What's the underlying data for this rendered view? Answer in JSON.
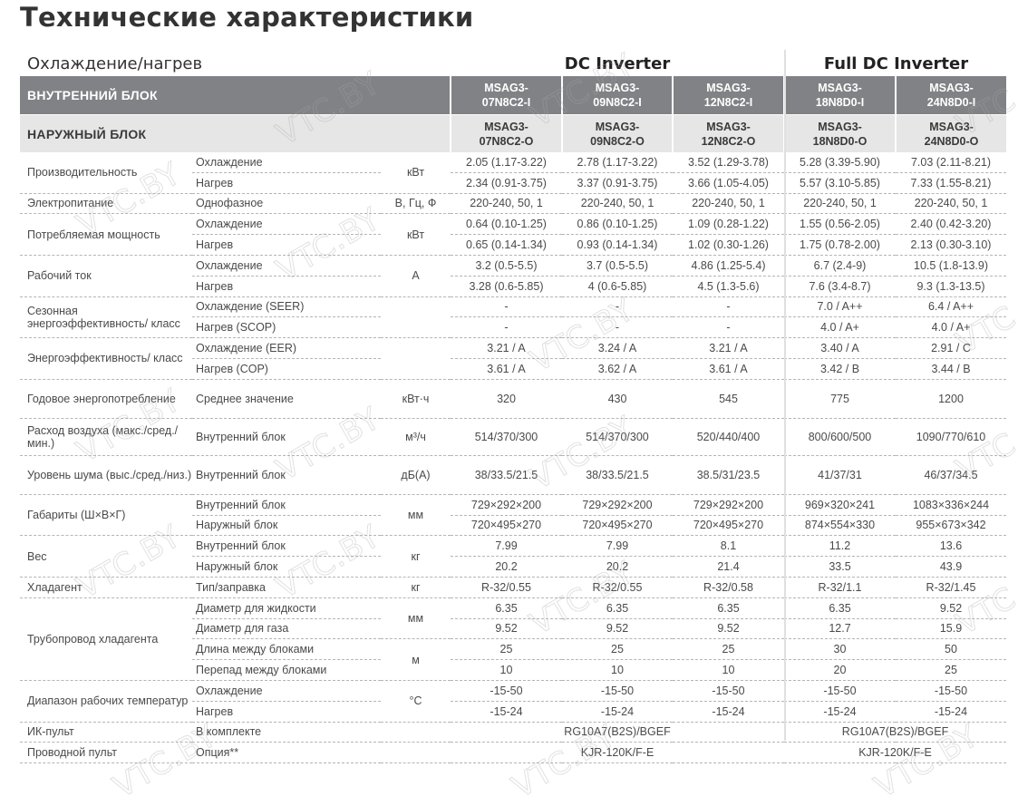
{
  "title": "Технические характеристики",
  "subtitle": "Охлаждение/нагрев",
  "series": [
    "DC Inverter",
    "Full DC Inverter"
  ],
  "watermark": "VTC.BY",
  "header": {
    "indoor_label": "ВНУТРЕННИЙ БЛОК",
    "outdoor_label": "НАРУЖНЫЙ БЛОК",
    "indoor_models": [
      [
        "MSAG3-",
        "07N8C2-I"
      ],
      [
        "MSAG3-",
        "09N8C2-I"
      ],
      [
        "MSAG3-",
        "12N8C2-I"
      ],
      [
        "MSAG3-",
        "18N8D0-I"
      ],
      [
        "MSAG3-",
        "24N8D0-I"
      ]
    ],
    "outdoor_models": [
      [
        "MSAG3-",
        "07N8C2-O"
      ],
      [
        "MSAG3-",
        "09N8C2-O"
      ],
      [
        "MSAG3-",
        "12N8C2-O"
      ],
      [
        "MSAG3-",
        "18N8D0-O"
      ],
      [
        "MSAG3-",
        "24N8D0-O"
      ]
    ]
  },
  "groups": [
    {
      "label": "Производительность",
      "unit": "кВт",
      "rows": [
        {
          "sub": "Охлаждение",
          "values": [
            "2.05 (1.17-3.22)",
            "2.78 (1.17-3.22)",
            "3.52 (1.29-3.78)",
            "5.28 (3.39-5.90)",
            "7.03 (2.11-8.21)"
          ]
        },
        {
          "sub": "Нагрев",
          "values": [
            "2.34 (0.91-3.75)",
            "3.37 (0.91-3.75)",
            "3.66 (1.05-4.05)",
            "5.57 (3.10-5.85)",
            "7.33 (1.55-8.21)"
          ]
        }
      ]
    },
    {
      "label": "Электропитание",
      "unit": "В, Гц, Ф",
      "rows": [
        {
          "sub": "Однофазное",
          "values": [
            "220-240, 50, 1",
            "220-240, 50, 1",
            "220-240, 50, 1",
            "220-240, 50, 1",
            "220-240, 50, 1"
          ]
        }
      ]
    },
    {
      "label": "Потребляемая мощность",
      "unit": "кВт",
      "rows": [
        {
          "sub": "Охлаждение",
          "values": [
            "0.64 (0.10-1.25)",
            "0.86 (0.10-1.25)",
            "1.09 (0.28-1.22)",
            "1.55 (0.56-2.05)",
            "2.40 (0.42-3.20)"
          ]
        },
        {
          "sub": "Нагрев",
          "values": [
            "0.65 (0.14-1.34)",
            "0.93 (0.14-1.34)",
            "1.02 (0.30-1.26)",
            "1.75 (0.78-2.00)",
            "2.13 (0.30-3.10)"
          ]
        }
      ]
    },
    {
      "label": "Рабочий ток",
      "unit": "А",
      "rows": [
        {
          "sub": "Охлаждение",
          "values": [
            "3.2 (0.5-5.5)",
            "3.7 (0.5-5.5)",
            "4.86 (1.25-5.4)",
            "6.7 (2.4-9)",
            "10.5 (1.8-13.9)"
          ]
        },
        {
          "sub": "Нагрев",
          "values": [
            "3.28 (0.6-5.85)",
            "4 (0.6-5.85)",
            "4.5 (1.3-5.6)",
            "7.6 (3.4-8.7)",
            "9.3 (1.3-13.5)"
          ]
        }
      ]
    },
    {
      "label": "Сезонная энергоэффективность/ класс",
      "unit": "",
      "rows": [
        {
          "sub": "Охлаждение (SEER)",
          "values": [
            "-",
            "-",
            "-",
            "7.0 / A++",
            "6.4 / A++"
          ]
        },
        {
          "sub": "Нагрев (SCOP)",
          "values": [
            "-",
            "-",
            "-",
            "4.0 / A+",
            "4.0 / A+"
          ]
        }
      ]
    },
    {
      "label": "Энергоэффективность/ класс",
      "unit": "",
      "rows": [
        {
          "sub": "Охлаждение (EER)",
          "values": [
            "3.21 / A",
            "3.24 / A",
            "3.21 / A",
            "3.40 / A",
            "2.91 / C"
          ]
        },
        {
          "sub": "Нагрев (COP)",
          "values": [
            "3.61 / A",
            "3.62 / A",
            "3.61 / A",
            "3.42 / B",
            "3.44 / B"
          ]
        }
      ]
    },
    {
      "label": "Годовое энергопотребление",
      "unit": "кВт·ч",
      "tall": 42,
      "rows": [
        {
          "sub": "Среднее значение",
          "values": [
            "320",
            "430",
            "545",
            "775",
            "1200"
          ]
        }
      ]
    },
    {
      "label": "Расход воздуха (макс./сред./мин.)",
      "unit": "м³/ч",
      "tall": 40,
      "rows": [
        {
          "sub": "Внутренний блок",
          "values": [
            "514/370/300",
            "514/370/300",
            "520/440/400",
            "800/600/500",
            "1090/770/610"
          ]
        }
      ]
    },
    {
      "label": "Уровень шума (выс./сред./низ.)",
      "unit": "дБ(А)",
      "tall": 42,
      "rows": [
        {
          "sub": "Внутренний блок",
          "values": [
            "38/33.5/21.5",
            "38/33.5/21.5",
            "38.5/31/23.5",
            "41/37/31",
            "46/37/34.5"
          ]
        }
      ]
    },
    {
      "label": "Габариты (Ш×В×Г)",
      "unit": "мм",
      "rows": [
        {
          "sub": "Внутренний блок",
          "values": [
            "729×292×200",
            "729×292×200",
            "729×292×200",
            "969×320×241",
            "1083×336×244"
          ]
        },
        {
          "sub": "Наружный блок",
          "values": [
            "720×495×270",
            "720×495×270",
            "720×495×270",
            "874×554×330",
            "955×673×342"
          ]
        }
      ]
    },
    {
      "label": "Вес",
      "unit": "кг",
      "rows": [
        {
          "sub": "Внутренний блок",
          "values": [
            "7.99",
            "7.99",
            "8.1",
            "11.2",
            "13.6"
          ]
        },
        {
          "sub": "Наружный блок",
          "values": [
            "20.2",
            "20.2",
            "21.4",
            "33.5",
            "43.9"
          ]
        }
      ]
    },
    {
      "label": "Хладагент",
      "unit": "кг",
      "rows": [
        {
          "sub": "Тип/заправка",
          "values": [
            "R-32/0.55",
            "R-32/0.55",
            "R-32/0.58",
            "R-32/1.1",
            "R-32/1.45"
          ]
        }
      ]
    },
    {
      "label": "Трубопровод хладагента",
      "units": [
        "мм",
        "м"
      ],
      "rows": [
        {
          "sub": "Диаметр для жидкости",
          "values": [
            "6.35",
            "6.35",
            "6.35",
            "6.35",
            "9.52"
          ]
        },
        {
          "sub": "Диаметр для газа",
          "values": [
            "9.52",
            "9.52",
            "9.52",
            "12.7",
            "15.9"
          ]
        },
        {
          "sub": "Длина между блоками",
          "values": [
            "25",
            "25",
            "25",
            "30",
            "50"
          ]
        },
        {
          "sub": "Перепад между блоками",
          "values": [
            "10",
            "10",
            "10",
            "20",
            "25"
          ]
        }
      ]
    },
    {
      "label": "Диапазон рабочих температур",
      "unit": "°C",
      "rows": [
        {
          "sub": "Охлаждение",
          "values": [
            "-15-50",
            "-15-50",
            "-15-50",
            "-15-50",
            "-15-50"
          ]
        },
        {
          "sub": "Нагрев",
          "values": [
            "-15-24",
            "-15-24",
            "-15-24",
            "-15-24",
            "-15-24"
          ]
        }
      ]
    },
    {
      "label": "ИК-пульт",
      "unit": "",
      "merged": true,
      "rows": [
        {
          "sub": "В комплекте",
          "values": [
            "RG10A7(B2S)/BGEF",
            "RG10A7(B2S)/BGEF"
          ]
        }
      ]
    },
    {
      "label": "Проводной пульт",
      "unit": "",
      "merged": true,
      "rows": [
        {
          "sub": "Опция**",
          "values": [
            "KJR-120K/F-E",
            "KJR-120K/F-E"
          ]
        }
      ]
    }
  ]
}
